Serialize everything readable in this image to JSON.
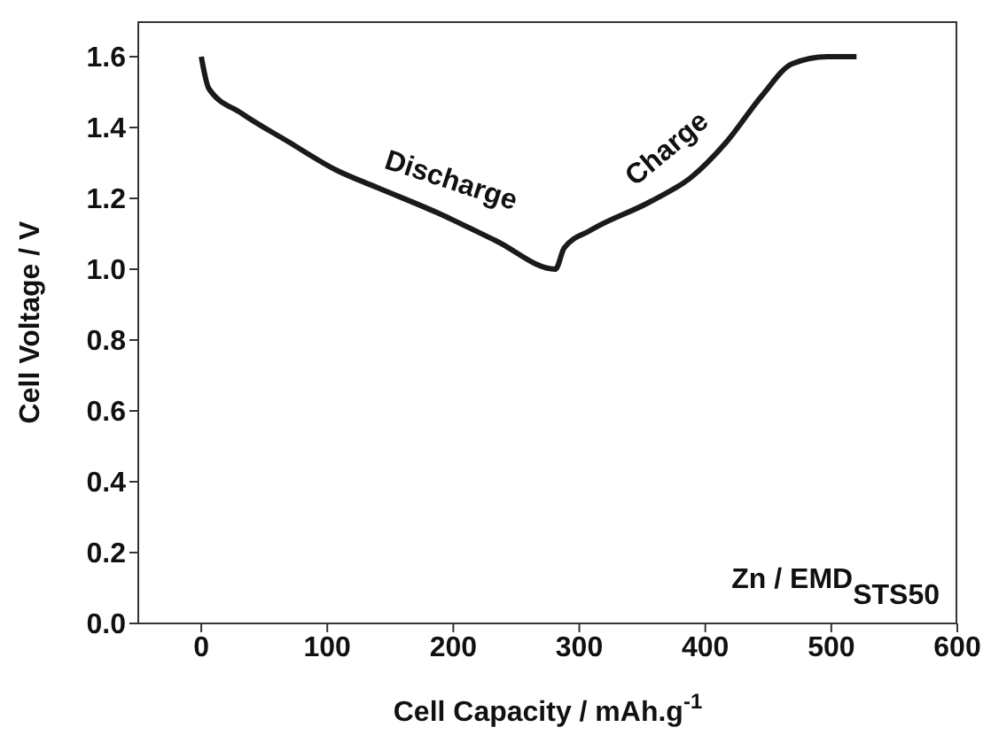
{
  "chart_data": {
    "type": "line",
    "xlabel": "Cell Capacity / mAh.g$^{-1}$",
    "ylabel": "Cell Voltage / V",
    "x": [
      0,
      6,
      32,
      69,
      107,
      140,
      187,
      234,
      281,
      288,
      309,
      356,
      389,
      417,
      445,
      469,
      497,
      520
    ],
    "series": [
      {
        "color": "#1a1a1a",
        "values": [
          1.6,
          1.51,
          1.44,
          1.36,
          1.28,
          1.23,
          1.16,
          1.08,
          1.0,
          1.06,
          1.11,
          1.19,
          1.26,
          1.36,
          1.49,
          1.58,
          1.6,
          1.6
        ]
      }
    ],
    "xlim": [
      -50,
      600
    ],
    "xticks": [
      0,
      100,
      200,
      300,
      400,
      500,
      600
    ],
    "ylim": [
      0,
      1.7
    ],
    "yticks": [
      {
        "value": 0,
        "label": "0.0"
      },
      0.2,
      0.4,
      0.6,
      0.8,
      {
        "value": 1,
        "label": "1.0"
      },
      1.2,
      1.4,
      1.6
    ],
    "annotations": [
      {
        "text": "Discharge",
        "x": 190,
        "y": 1.16
      },
      {
        "text": "Charge",
        "x": 400,
        "y": 1.32
      },
      "Zn / EMD$_{STS50}$"
    ],
    "marker": "none",
    "line_style": "solid"
  }
}
